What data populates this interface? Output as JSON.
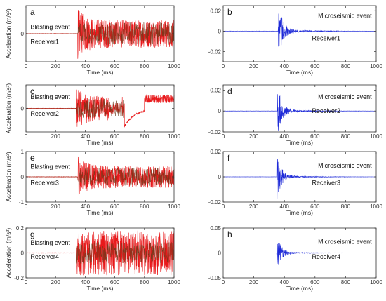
{
  "chart_data": [
    {
      "panel": "a",
      "type": "line",
      "color": "#e8191b",
      "color2": "#6b3a1a",
      "style": "blast",
      "xlim": [
        0,
        1000
      ],
      "ylim": [
        -0.2,
        0.2
      ],
      "yticks": [
        "0"
      ],
      "xticks": [
        "0",
        "200",
        "400",
        "600",
        "800",
        "1000"
      ],
      "xlabel": "Time (ms)",
      "ylabel": "Acceleration (m/s²)",
      "annotations": [
        "Blasting event",
        "Receiver1"
      ],
      "x_onset": 350,
      "amp": 0.18
    },
    {
      "panel": "b",
      "type": "line",
      "color": "#1f2bd8",
      "style": "micro",
      "xlim": [
        0,
        1000
      ],
      "ylim": [
        -0.03,
        0.025
      ],
      "yticks": [
        "0.02",
        "0",
        "-0.02"
      ],
      "xticks": [
        "0",
        "200",
        "400",
        "600",
        "800",
        "1000"
      ],
      "xlabel": "Time (ms)",
      "ylabel": "",
      "annotations": [
        "Microseismic event",
        "Receiver1"
      ],
      "x_onset": 360,
      "amp": 0.028
    },
    {
      "panel": "c",
      "type": "line",
      "color": "#e8191b",
      "color2": "#6b3a1a",
      "style": "blast2",
      "xlim": [
        0,
        1000
      ],
      "ylim": [
        -0.2,
        0.2
      ],
      "yticks": [
        "0"
      ],
      "xticks": [
        "0",
        "200",
        "400",
        "600",
        "800",
        "1000"
      ],
      "xlabel": "Time (ms)",
      "ylabel": "Acceleration (m/s²)",
      "annotations": [
        "Blasting event",
        "Receiver2"
      ],
      "x_onset": 340,
      "amp": 0.18
    },
    {
      "panel": "d",
      "type": "line",
      "color": "#1f2bd8",
      "style": "micro",
      "xlim": [
        0,
        1000
      ],
      "ylim": [
        -0.02,
        0.025
      ],
      "yticks": [
        "0.02",
        "0",
        "-0.02"
      ],
      "xticks": [
        "0",
        "200",
        "400",
        "600",
        "800",
        "1000"
      ],
      "xlabel": "Time (ms)",
      "ylabel": "",
      "annotations": [
        "Microseismic event",
        "Receiver2"
      ],
      "x_onset": 355,
      "amp": 0.025
    },
    {
      "panel": "e",
      "type": "line",
      "color": "#e8191b",
      "color2": "#6b3a1a",
      "style": "blast",
      "xlim": [
        0,
        1000
      ],
      "ylim": [
        -1,
        1
      ],
      "yticks": [
        "1",
        "0",
        "-1"
      ],
      "xticks": [
        "0",
        "200",
        "400",
        "600",
        "800",
        "1000"
      ],
      "xlabel": "Time (ms)",
      "ylabel": "Acceleration (m/s²)",
      "annotations": [
        "Blasting event",
        "Receiver3"
      ],
      "x_onset": 350,
      "amp": 0.8
    },
    {
      "panel": "f",
      "type": "line",
      "color": "#1f2bd8",
      "style": "micro",
      "xlim": [
        0,
        1000
      ],
      "ylim": [
        -0.02,
        0.02
      ],
      "yticks": [
        "0.02",
        "0",
        "-0.02"
      ],
      "xticks": [
        "0",
        "200",
        "400",
        "600",
        "800",
        "1000"
      ],
      "xlabel": "Time (ms)",
      "ylabel": "",
      "annotations": [
        "Microseismic event",
        "Receiver3"
      ],
      "x_onset": 350,
      "amp": 0.018
    },
    {
      "panel": "g",
      "type": "line",
      "color": "#e8191b",
      "color2": "#6b3a1a",
      "style": "blastwide",
      "xlim": [
        0,
        1000
      ],
      "ylim": [
        -0.2,
        0.2
      ],
      "yticks": [
        "0.2",
        "0",
        "-0.2"
      ],
      "xticks": [
        "0",
        "200",
        "400",
        "600",
        "800",
        "1000"
      ],
      "xlabel": "Time (ms)",
      "ylabel": "Acceleration (m/s²)",
      "annotations": [
        "Blasting event",
        "Receiver4"
      ],
      "x_onset": 340,
      "amp": 0.19
    },
    {
      "panel": "h",
      "type": "line",
      "color": "#1f2bd8",
      "style": "micro",
      "xlim": [
        0,
        1000
      ],
      "ylim": [
        -0.05,
        0.05
      ],
      "yticks": [
        "0.05",
        "0",
        "-0.05"
      ],
      "xticks": [
        "0",
        "200",
        "400",
        "600",
        "800",
        "1000"
      ],
      "xlabel": "Time (ms)",
      "ylabel": "",
      "annotations": [
        "Microseismic event",
        "Receiver4"
      ],
      "x_onset": 350,
      "amp": 0.035
    }
  ]
}
